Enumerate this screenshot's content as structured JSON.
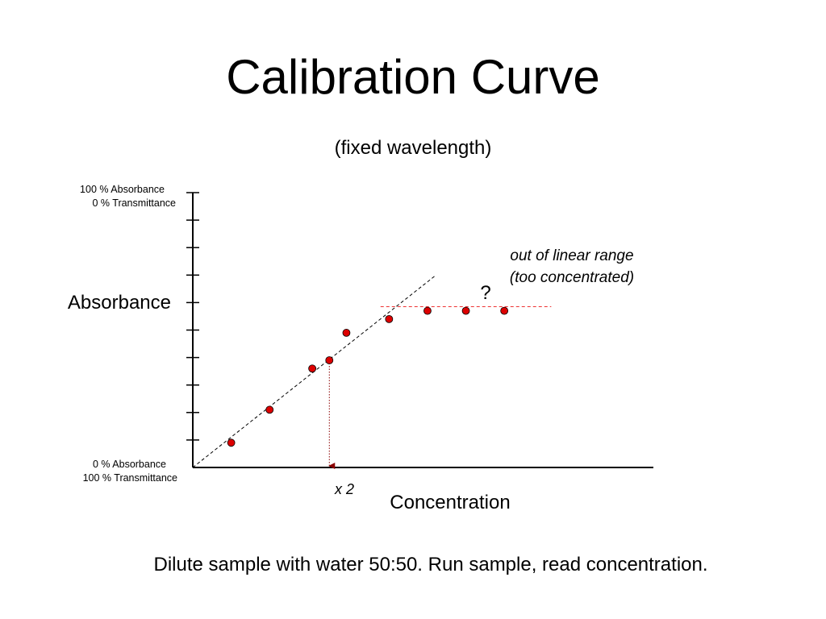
{
  "slide": {
    "title": "Calibration Curve",
    "subtitle": "(fixed wavelength)",
    "footer": "Dilute sample with water 50:50.  Run sample, read concentration."
  },
  "chart_data": {
    "type": "scatter",
    "title": "",
    "xlabel": "Concentration",
    "ylabel": "Absorbance",
    "y_top_label": [
      "100 % Absorbance",
      "0 % Transmittance"
    ],
    "y_bottom_label": [
      "0 % Absorbance",
      "100 % Transmittance"
    ],
    "xlim": [
      0,
      10
    ],
    "ylim": [
      0,
      10
    ],
    "y_tick_count": 10,
    "x_ticks": false,
    "grid": false,
    "marker_color": "#dd0000",
    "series": [
      {
        "points": [
          {
            "x": 0.9,
            "y": 0.9
          },
          {
            "x": 1.8,
            "y": 2.1
          },
          {
            "x": 2.8,
            "y": 3.6
          },
          {
            "x": 3.2,
            "y": 3.9
          },
          {
            "x": 3.6,
            "y": 4.9
          },
          {
            "x": 4.6,
            "y": 5.4
          },
          {
            "x": 5.5,
            "y": 5.7
          },
          {
            "x": 6.4,
            "y": 5.7
          },
          {
            "x": 7.3,
            "y": 5.7
          }
        ]
      }
    ],
    "linear_fit": {
      "x0": 0,
      "y0": 0,
      "x1": 5.7,
      "y1": 7.0
    },
    "plateau_line": {
      "y": 5.85,
      "x_from": 4.4,
      "x_to": 8.4
    },
    "read_down_arrow": {
      "x": 3.2,
      "y": 3.9
    },
    "annotations": {
      "question": "?",
      "out_of_range_line1": "out of linear range",
      "out_of_range_line2": "(too concentrated)",
      "x2": "x 2"
    }
  }
}
